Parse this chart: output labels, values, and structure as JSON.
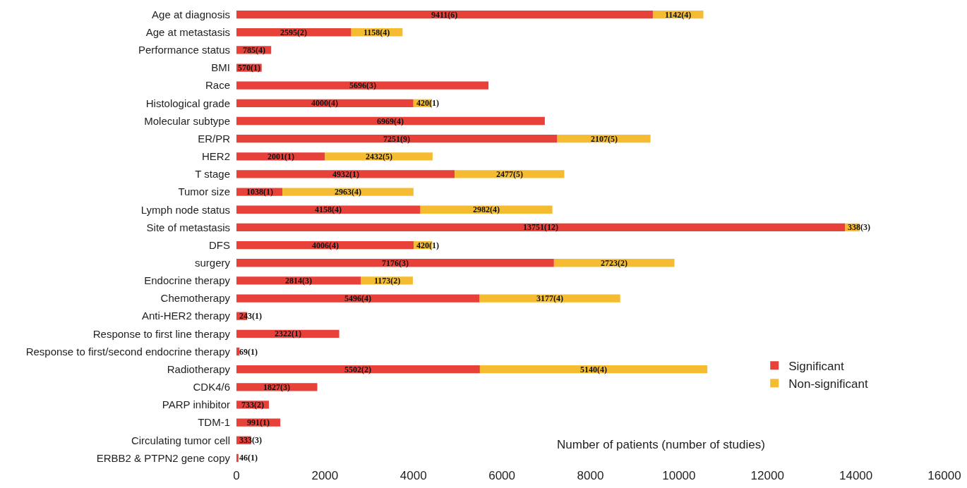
{
  "chart_data": {
    "type": "bar",
    "orientation": "horizontal",
    "stacked": true,
    "xlabel": "Number of patients (number of studies)",
    "categories": [
      "Age at diagnosis",
      "Age at metastasis",
      "Performance status",
      "BMI",
      "Race",
      "Histological grade",
      "Molecular subtype",
      "ER/PR",
      "HER2",
      "T stage",
      "Tumor size",
      "Lymph node status",
      "Site of metastasis",
      "DFS",
      "surgery",
      "Endocrine therapy",
      "Chemotherapy",
      "Anti-HER2 therapy",
      "Response to first line therapy",
      "Response to first/second endocrine therapy",
      "Radiotherapy",
      "CDK4/6",
      "PARP inhibitor",
      "TDM-1",
      "Circulating tumor cell",
      "ERBB2 & PTPN2 gene copy"
    ],
    "series": [
      {
        "name": "Significant",
        "color": "#e8413a",
        "values": [
          9411,
          2595,
          785,
          570,
          5696,
          4000,
          6969,
          7251,
          2001,
          4932,
          1038,
          4158,
          13751,
          4006,
          7176,
          2814,
          5496,
          243,
          2322,
          69,
          5502,
          1827,
          733,
          991,
          333,
          46
        ],
        "value_labels": [
          "9411(6)",
          "2595(2)",
          "785(4)",
          "570(1)",
          "5696(3)",
          "4000(4)",
          "6969(4)",
          "7251(9)",
          "2001(1)",
          "4932(1)",
          "1038(1)",
          "4158(4)",
          "13751(12)",
          "4006(4)",
          "7176(3)",
          "2814(3)",
          "5496(4)",
          "243(1)",
          "2322(1)",
          "69(1)",
          "5502(2)",
          "1827(3)",
          "733(2)",
          "991(1)",
          "333(3)",
          "46(1)"
        ]
      },
      {
        "name": "Non-significant",
        "color": "#f6bc31",
        "values": [
          1142,
          1158,
          null,
          null,
          null,
          420,
          null,
          2107,
          2432,
          2477,
          2963,
          2982,
          338,
          420,
          2723,
          1173,
          3177,
          null,
          null,
          null,
          5140,
          null,
          null,
          null,
          null,
          null
        ],
        "value_labels": [
          "1142(4)",
          "1158(4)",
          null,
          null,
          null,
          "420(1)",
          null,
          "2107(5)",
          "2432(5)",
          "2477(5)",
          "2963(4)",
          "2982(4)",
          "338(3)",
          "420(1)",
          "2723(2)",
          "1173(2)",
          "3177(4)",
          null,
          null,
          null,
          "5140(4)",
          null,
          null,
          null,
          null,
          null
        ]
      }
    ],
    "xlim": [
      0,
      16000
    ],
    "xticks": [
      0,
      2000,
      4000,
      6000,
      8000,
      10000,
      12000,
      14000,
      16000
    ],
    "legend": "bottom right"
  }
}
